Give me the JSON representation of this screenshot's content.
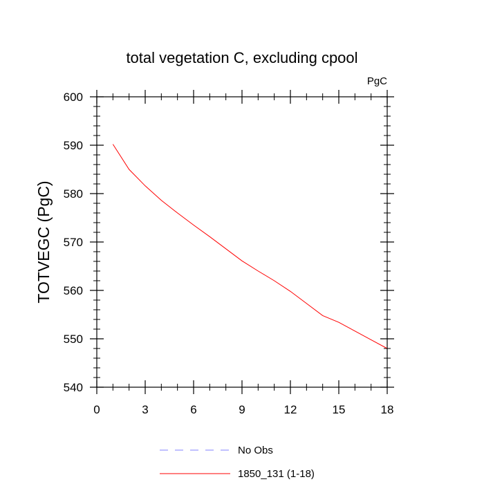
{
  "chart_data": {
    "type": "line",
    "title": "total vegetation C, excluding cpool",
    "units_label": "PgC",
    "xlabel": "",
    "ylabel": "TOTVEGC  (PgC)",
    "xlim": [
      0,
      18
    ],
    "ylim": [
      540,
      600
    ],
    "x_ticks": [
      0,
      3,
      6,
      9,
      12,
      15,
      18
    ],
    "y_ticks": [
      540,
      550,
      560,
      570,
      580,
      590,
      600
    ],
    "x_tick_labels": [
      "0",
      "3",
      "6",
      "9",
      "12",
      "15",
      "18"
    ],
    "y_tick_labels": [
      "540",
      "550",
      "560",
      "570",
      "580",
      "590",
      "600"
    ],
    "series": [
      {
        "name": "1850_131 (1-18)",
        "color": "#ff0000",
        "style": "solid",
        "x": [
          1,
          2,
          3,
          4,
          5,
          6,
          7,
          8,
          9,
          10,
          11,
          12,
          13,
          14,
          15,
          16,
          17,
          18
        ],
        "values": [
          590.2,
          585.0,
          581.6,
          578.6,
          576.0,
          573.5,
          571.1,
          568.6,
          566.1,
          564.0,
          562.0,
          559.8,
          557.3,
          554.8,
          553.4,
          551.6,
          549.8,
          548.0
        ]
      }
    ],
    "legend": [
      {
        "label": "No Obs",
        "color": "#8080ff",
        "style": "dashed"
      },
      {
        "label": "1850_131 (1-18)",
        "color": "#ff0000",
        "style": "solid"
      }
    ],
    "legend_position": "bottom-center",
    "grid": false
  }
}
